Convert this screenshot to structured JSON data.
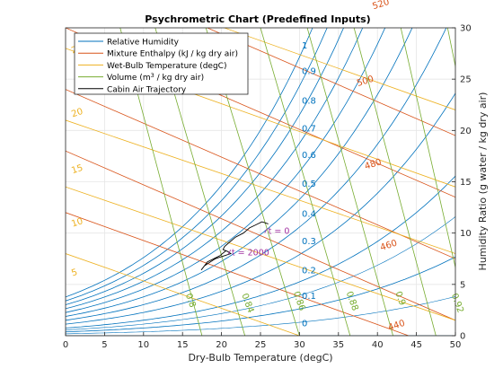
{
  "chart_data": {
    "type": "line",
    "title": "Psychrometric Chart (Predefined Inputs)",
    "xlabel": "Dry-Bulb Temperature (degC)",
    "ylabel": "Humidity Ratio (g water / kg dry air)",
    "xlim": [
      0,
      50
    ],
    "ylim": [
      0,
      30
    ],
    "xticks": [
      0,
      5,
      10,
      15,
      20,
      25,
      30,
      35,
      40,
      45,
      50
    ],
    "yticks": [
      0,
      5,
      10,
      15,
      20,
      25,
      30
    ],
    "yaxis_position": "right",
    "grid": true,
    "legend_position": "top-left",
    "legend": [
      {
        "name": "Relative Humidity",
        "color": "#0072bd"
      },
      {
        "name": "Mixture Enthalpy (kJ / kg dry air)",
        "color": "#d95319"
      },
      {
        "name": "Wet-Bulb Temperature (degC)",
        "color": "#edb120"
      },
      {
        "name": "Volume (m",
        "sup": "3",
        "name_end": " / kg dry air)",
        "color": "#77ac30"
      },
      {
        "name": "Cabin Air Trajectory",
        "color": "#000000"
      }
    ],
    "rh_labels": [
      "0",
      "0.1",
      "0.2",
      "0.3",
      "0.4",
      "0.5",
      "0.6",
      "0.7",
      "0.8",
      "0.9",
      "1"
    ],
    "enthalpy_labels": [
      "440",
      "460",
      "480",
      "500",
      "520"
    ],
    "wetbulb_labels": [
      "5",
      "10",
      "15",
      "20",
      "25"
    ],
    "volume_labels": [
      "0.8",
      "0.84",
      "0.86",
      "0.88",
      "0.9",
      "0.92"
    ],
    "trajectory": {
      "x": [
        26.0,
        25.2,
        24.4,
        23.6,
        22.8,
        21.8,
        21.0,
        20.4,
        20.2,
        20.8,
        21.2,
        20.4,
        19.6,
        19.2,
        18.8,
        18.4,
        17.8,
        17.4,
        18.2,
        19.8,
        20.6
      ],
      "y": [
        10.9,
        11.1,
        10.8,
        10.5,
        10.0,
        9.6,
        9.1,
        8.7,
        8.4,
        8.2,
        8.0,
        7.8,
        7.6,
        7.5,
        7.3,
        7.1,
        6.8,
        6.4,
        7.2,
        7.8,
        8.3
      ]
    },
    "annotations": [
      {
        "text": "t = 0",
        "x": 26.0,
        "y": 10.2
      },
      {
        "text": "t = 2000",
        "x": 21.3,
        "y": 8.1
      }
    ]
  }
}
